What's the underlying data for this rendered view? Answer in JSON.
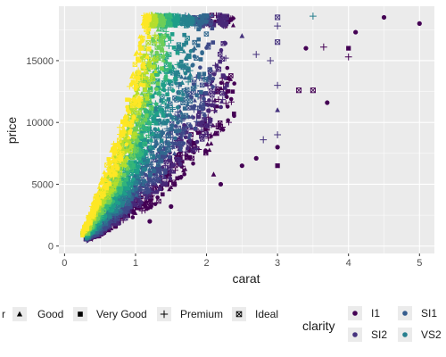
{
  "chart_data": {
    "type": "scatter",
    "xlabel": "carat",
    "ylabel": "price",
    "xlim": [
      -0.08,
      5.21
    ],
    "ylim": [
      -600,
      19400
    ],
    "x_ticks": [
      0,
      1,
      2,
      3,
      4,
      5
    ],
    "x_tick_labels": [
      "0",
      "1",
      "2",
      "3",
      "4",
      "5"
    ],
    "y_ticks": [
      0,
      5000,
      10000,
      15000
    ],
    "y_tick_labels": [
      "0",
      "5000",
      "10000",
      "15000"
    ],
    "grid": true,
    "panel_background": "#ebebeb",
    "cut_legend": {
      "title": "",
      "entries": [
        {
          "label": "r",
          "shape": "circle"
        },
        {
          "label": "Good",
          "shape": "triangle"
        },
        {
          "label": "Very Good",
          "shape": "square"
        },
        {
          "label": "Premium",
          "shape": "plus"
        },
        {
          "label": "Ideal",
          "shape": "boxed-x"
        }
      ]
    },
    "clarity_legend": {
      "title": "clarity",
      "entries": [
        {
          "label": "I1",
          "color": "#440154"
        },
        {
          "label": "SI2",
          "color": "#46337e"
        },
        {
          "label": "SI1",
          "color": "#365c8d"
        },
        {
          "label": "VS2",
          "color": "#277f8e"
        }
      ]
    },
    "series": [
      {
        "name": "I1",
        "color": "#440154",
        "points": [
          {
            "x": 4.5,
            "y": 18500,
            "shape": "circle"
          },
          {
            "x": 5.0,
            "y": 18000,
            "shape": "circle"
          },
          {
            "x": 4.1,
            "y": 17300,
            "shape": "circle"
          },
          {
            "x": 3.4,
            "y": 16000,
            "shape": "circle"
          },
          {
            "x": 3.65,
            "y": 16100,
            "shape": "plus"
          },
          {
            "x": 4.0,
            "y": 15300,
            "shape": "plus"
          },
          {
            "x": 4.0,
            "y": 16000,
            "shape": "square"
          },
          {
            "x": 3.3,
            "y": 12600,
            "shape": "boxed-x"
          },
          {
            "x": 3.5,
            "y": 12600,
            "shape": "boxed-x"
          },
          {
            "x": 3.7,
            "y": 11600,
            "shape": "circle"
          },
          {
            "x": 3.0,
            "y": 8000,
            "shape": "circle"
          },
          {
            "x": 3.0,
            "y": 6500,
            "shape": "square"
          },
          {
            "x": 2.7,
            "y": 7100,
            "shape": "circle"
          },
          {
            "x": 2.5,
            "y": 6500,
            "shape": "circle"
          },
          {
            "x": 2.2,
            "y": 5000,
            "shape": "circle"
          },
          {
            "x": 2.1,
            "y": 5800,
            "shape": "triangle"
          },
          {
            "x": 1.5,
            "y": 3200,
            "shape": "circle"
          },
          {
            "x": 1.2,
            "y": 2000,
            "shape": "circle"
          }
        ]
      },
      {
        "name": "SI2",
        "color": "#46337e",
        "points": [
          {
            "x": 3.0,
            "y": 18500,
            "shape": "boxed-x"
          },
          {
            "x": 3.0,
            "y": 17800,
            "shape": "plus"
          },
          {
            "x": 3.0,
            "y": 16500,
            "shape": "boxed-x"
          },
          {
            "x": 2.9,
            "y": 15000,
            "shape": "plus"
          },
          {
            "x": 3.0,
            "y": 13000,
            "shape": "plus"
          },
          {
            "x": 3.0,
            "y": 11000,
            "shape": "triangle"
          },
          {
            "x": 3.0,
            "y": 9000,
            "shape": "plus"
          },
          {
            "x": 2.8,
            "y": 8600,
            "shape": "plus"
          },
          {
            "x": 2.7,
            "y": 15500,
            "shape": "plus"
          },
          {
            "x": 2.5,
            "y": 17000,
            "shape": "triangle"
          }
        ]
      },
      {
        "name": "VS2",
        "color": "#277f8e",
        "points": [
          {
            "x": 3.5,
            "y": 18600,
            "shape": "plus"
          }
        ]
      }
    ],
    "density_bands": [
      {
        "color": "#440154",
        "pts": [
          [
            0.3,
            500
          ],
          [
            0.5,
            1000
          ],
          [
            0.7,
            1900
          ],
          [
            0.9,
            2600
          ],
          [
            1.0,
            3100
          ],
          [
            1.2,
            3800
          ],
          [
            1.5,
            5500
          ],
          [
            1.7,
            7000
          ],
          [
            2.0,
            9000
          ],
          [
            2.2,
            11500
          ],
          [
            2.4,
            13000
          ]
        ]
      },
      {
        "color": "#482878",
        "pts": [
          [
            0.3,
            550
          ],
          [
            0.5,
            1100
          ],
          [
            0.7,
            2100
          ],
          [
            0.9,
            3000
          ],
          [
            1.0,
            3600
          ],
          [
            1.2,
            4700
          ],
          [
            1.4,
            6000
          ],
          [
            1.6,
            7800
          ],
          [
            1.9,
            9800
          ],
          [
            2.1,
            12500
          ],
          [
            2.3,
            15000
          ]
        ]
      },
      {
        "color": "#3e4a89",
        "pts": [
          [
            0.3,
            600
          ],
          [
            0.5,
            1300
          ],
          [
            0.7,
            2400
          ],
          [
            0.9,
            3500
          ],
          [
            1.0,
            4300
          ],
          [
            1.2,
            5500
          ],
          [
            1.4,
            7000
          ],
          [
            1.5,
            8500
          ],
          [
            1.8,
            11000
          ],
          [
            2.0,
            13500
          ],
          [
            2.1,
            15500
          ]
        ]
      },
      {
        "color": "#31688e",
        "pts": [
          [
            0.3,
            650
          ],
          [
            0.45,
            1400
          ],
          [
            0.6,
            2300
          ],
          [
            0.8,
            3600
          ],
          [
            1.0,
            5000
          ],
          [
            1.1,
            6000
          ],
          [
            1.3,
            8000
          ],
          [
            1.5,
            10000
          ],
          [
            1.7,
            12500
          ],
          [
            1.9,
            15000
          ],
          [
            2.0,
            17000
          ]
        ]
      },
      {
        "color": "#26828e",
        "pts": [
          [
            0.3,
            700
          ],
          [
            0.45,
            1600
          ],
          [
            0.6,
            2600
          ],
          [
            0.8,
            4000
          ],
          [
            1.0,
            5800
          ],
          [
            1.1,
            7000
          ],
          [
            1.2,
            8500
          ],
          [
            1.4,
            11000
          ],
          [
            1.6,
            13500
          ],
          [
            1.7,
            15500
          ],
          [
            1.8,
            17500
          ]
        ]
      },
      {
        "color": "#1f9e89",
        "pts": [
          [
            0.3,
            800
          ],
          [
            0.4,
            1500
          ],
          [
            0.55,
            2600
          ],
          [
            0.7,
            3800
          ],
          [
            0.9,
            5500
          ],
          [
            1.0,
            7000
          ],
          [
            1.1,
            8500
          ],
          [
            1.25,
            10500
          ],
          [
            1.4,
            13000
          ],
          [
            1.5,
            15000
          ],
          [
            1.6,
            17500
          ]
        ]
      },
      {
        "color": "#35b779",
        "pts": [
          [
            0.3,
            900
          ],
          [
            0.4,
            1700
          ],
          [
            0.5,
            2700
          ],
          [
            0.7,
            4500
          ],
          [
            0.85,
            6000
          ],
          [
            1.0,
            8000
          ],
          [
            1.1,
            9500
          ],
          [
            1.2,
            11500
          ],
          [
            1.3,
            13500
          ],
          [
            1.4,
            15500
          ],
          [
            1.5,
            17500
          ]
        ]
      },
      {
        "color": "#6ece58",
        "pts": [
          [
            0.3,
            1000
          ],
          [
            0.4,
            2000
          ],
          [
            0.5,
            3000
          ],
          [
            0.6,
            4000
          ],
          [
            0.8,
            6500
          ],
          [
            0.9,
            8000
          ],
          [
            1.0,
            9500
          ],
          [
            1.1,
            11500
          ],
          [
            1.2,
            13500
          ],
          [
            1.3,
            15500
          ],
          [
            1.4,
            18000
          ]
        ]
      },
      {
        "color": "#b5de2b",
        "pts": [
          [
            0.25,
            900
          ],
          [
            0.35,
            1800
          ],
          [
            0.45,
            3000
          ],
          [
            0.6,
            4800
          ],
          [
            0.75,
            6500
          ],
          [
            0.85,
            8000
          ],
          [
            0.95,
            10000
          ],
          [
            1.05,
            12000
          ],
          [
            1.15,
            14000
          ],
          [
            1.25,
            16500
          ],
          [
            1.3,
            18000
          ]
        ]
      },
      {
        "color": "#fde725",
        "pts": [
          [
            0.25,
            1000
          ],
          [
            0.35,
            2200
          ],
          [
            0.45,
            3500
          ],
          [
            0.55,
            5000
          ],
          [
            0.7,
            7000
          ],
          [
            0.8,
            8500
          ],
          [
            0.9,
            10500
          ],
          [
            1.0,
            13000
          ],
          [
            1.1,
            15000
          ],
          [
            1.15,
            16500
          ],
          [
            1.2,
            18500
          ]
        ]
      }
    ]
  }
}
